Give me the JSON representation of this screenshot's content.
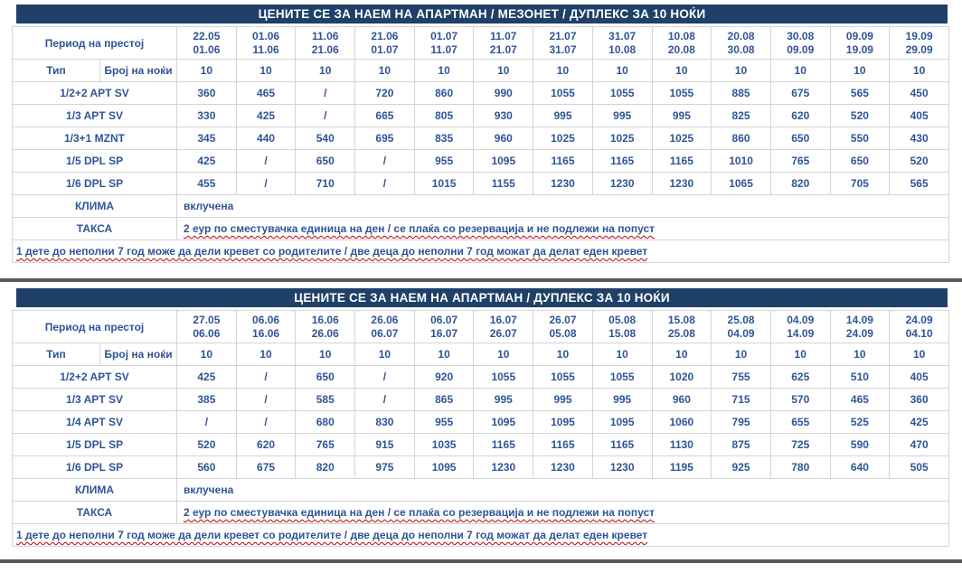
{
  "colors": {
    "band": "#1F4068",
    "text": "#2F5597",
    "border": "#D4D4D4",
    "separator": "#595959",
    "spellcheck": "#C00000",
    "title_text": "#FFFFFF"
  },
  "tables": [
    {
      "title": "ЦЕНИТЕ СЕ ЗА НАЕМ НА АПАРТМАН / МЕЗОНЕТ / ДУПЛЕКС ЗА 10 НОЌИ",
      "period_label": "Период на престој",
      "type_label": "Тип",
      "nights_label": "Број на ноќи",
      "nights_value": "10",
      "periods": [
        [
          "22.05",
          "01.06"
        ],
        [
          "01.06",
          "11.06"
        ],
        [
          "11.06",
          "21.06"
        ],
        [
          "21.06",
          "01.07"
        ],
        [
          "01.07",
          "11.07"
        ],
        [
          "11.07",
          "21.07"
        ],
        [
          "21.07",
          "31.07"
        ],
        [
          "31.07",
          "10.08"
        ],
        [
          "10.08",
          "20.08"
        ],
        [
          "20.08",
          "30.08"
        ],
        [
          "30.08",
          "09.09"
        ],
        [
          "09.09",
          "19.09"
        ],
        [
          "19.09",
          "29.09"
        ]
      ],
      "rows": [
        {
          "type": "1/2+2 APT SV",
          "prices": [
            "360",
            "465",
            "/",
            "720",
            "860",
            "990",
            "1055",
            "1055",
            "1055",
            "885",
            "675",
            "565",
            "450"
          ]
        },
        {
          "type": "1/3 APT SV",
          "prices": [
            "330",
            "425",
            "/",
            "665",
            "805",
            "930",
            "995",
            "995",
            "995",
            "825",
            "620",
            "520",
            "405"
          ]
        },
        {
          "type": "1/3+1 MZNT",
          "prices": [
            "345",
            "440",
            "540",
            "695",
            "835",
            "960",
            "1025",
            "1025",
            "1025",
            "860",
            "650",
            "550",
            "430"
          ]
        },
        {
          "type": "1/5 DPL SP",
          "prices": [
            "425",
            "/",
            "650",
            "/",
            "955",
            "1095",
            "1165",
            "1165",
            "1165",
            "1010",
            "765",
            "650",
            "520"
          ]
        },
        {
          "type": "1/6 DPL SP",
          "prices": [
            "455",
            "/",
            "710",
            "/",
            "1015",
            "1155",
            "1230",
            "1230",
            "1230",
            "1065",
            "820",
            "705",
            "565"
          ]
        }
      ],
      "klima_label": "КЛИМА",
      "klima_value": "вклучена",
      "taksa_label": "ТАКСА",
      "taksa_value": "2 еур по сместувачка  единица на ден / се плаќа  со резервација  и не подлежи на попуст",
      "footnote": "1 дете до неполни 7 год може да дели кревет со родителите / две деца до неполни 7 год можат да делат еден кревет"
    },
    {
      "title": "ЦЕНИТЕ СЕ ЗА НАЕМ НА АПАРТМАН / ДУПЛЕКС ЗА 10 НОЌИ",
      "period_label": "Период на престој",
      "type_label": "Тип",
      "nights_label": "Број на ноќи",
      "nights_value": "10",
      "periods": [
        [
          "27.05",
          "06.06"
        ],
        [
          "06.06",
          "16.06"
        ],
        [
          "16.06",
          "26.06"
        ],
        [
          "26.06",
          "06.07"
        ],
        [
          "06.07",
          "16.07"
        ],
        [
          "16.07",
          "26.07"
        ],
        [
          "26.07",
          "05.08"
        ],
        [
          "05.08",
          "15.08"
        ],
        [
          "15.08",
          "25.08"
        ],
        [
          "25.08",
          "04.09"
        ],
        [
          "04.09",
          "14.09"
        ],
        [
          "14.09",
          "24.09"
        ],
        [
          "24.09",
          "04.10"
        ]
      ],
      "rows": [
        {
          "type": "1/2+2 APT SV",
          "prices": [
            "425",
            "/",
            "650",
            "/",
            "920",
            "1055",
            "1055",
            "1055",
            "1020",
            "755",
            "625",
            "510",
            "405"
          ]
        },
        {
          "type": "1/3 APT SV",
          "prices": [
            "385",
            "/",
            "585",
            "/",
            "865",
            "995",
            "995",
            "995",
            "960",
            "715",
            "570",
            "465",
            "360"
          ]
        },
        {
          "type": "1/4 APT SV",
          "prices": [
            "/",
            "/",
            "680",
            "830",
            "955",
            "1095",
            "1095",
            "1095",
            "1060",
            "795",
            "655",
            "525",
            "425"
          ]
        },
        {
          "type": "1/5 DPL SP",
          "prices": [
            "520",
            "620",
            "765",
            "915",
            "1035",
            "1165",
            "1165",
            "1165",
            "1130",
            "875",
            "725",
            "590",
            "470"
          ]
        },
        {
          "type": "1/6 DPL SP",
          "prices": [
            "560",
            "675",
            "820",
            "975",
            "1095",
            "1230",
            "1230",
            "1230",
            "1195",
            "925",
            "780",
            "640",
            "505"
          ]
        }
      ],
      "klima_label": "КЛИМА",
      "klima_value": "вклучена",
      "taksa_label": "ТАКСА",
      "taksa_value": "2 еур по сместувачка  единица на ден / се плаќа  со резервација  и не подлежи на попуст",
      "footnote": "1 дете до неполни 7 год може да дели кревет со родителите / две деца до неполни 7 год можат да делат еден кревет"
    }
  ]
}
